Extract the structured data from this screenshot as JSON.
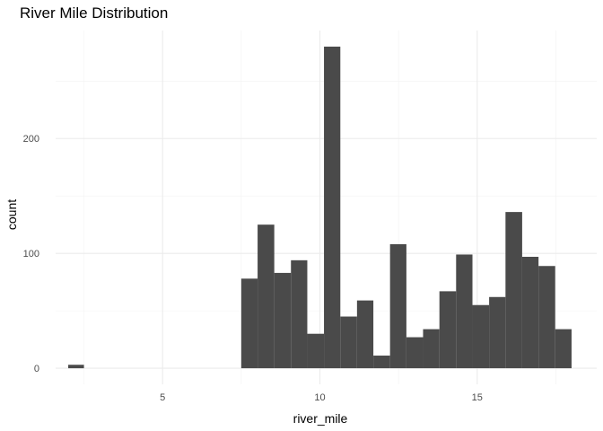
{
  "chart_data": {
    "type": "bar",
    "subtype": "histogram",
    "title": "River Mile Distribution",
    "xlabel": "river_mile",
    "ylabel": "count",
    "xlim": [
      1.6,
      18.8
    ],
    "ylim": [
      -14,
      294
    ],
    "x_ticks": [
      5,
      10,
      15
    ],
    "y_ticks": [
      0,
      100,
      200
    ],
    "x_minor_ticks": [
      2.5,
      7.5,
      12.5,
      17.5
    ],
    "y_minor_ticks": [
      50,
      150,
      250
    ],
    "grid": true,
    "bar_color": "#4a4a4a",
    "bins": [
      {
        "x0": 2.0,
        "x1": 2.5,
        "count": 3
      },
      {
        "x0": 7.5,
        "x1": 8.02,
        "count": 78
      },
      {
        "x0": 8.02,
        "x1": 8.55,
        "count": 125
      },
      {
        "x0": 8.55,
        "x1": 9.08,
        "count": 83
      },
      {
        "x0": 9.08,
        "x1": 9.6,
        "count": 94
      },
      {
        "x0": 9.6,
        "x1": 10.13,
        "count": 30
      },
      {
        "x0": 10.13,
        "x1": 10.65,
        "count": 280
      },
      {
        "x0": 10.65,
        "x1": 11.18,
        "count": 45
      },
      {
        "x0": 11.18,
        "x1": 11.7,
        "count": 59
      },
      {
        "x0": 11.7,
        "x1": 12.23,
        "count": 11
      },
      {
        "x0": 12.23,
        "x1": 12.75,
        "count": 108
      },
      {
        "x0": 12.75,
        "x1": 13.28,
        "count": 27
      },
      {
        "x0": 13.28,
        "x1": 13.8,
        "count": 34
      },
      {
        "x0": 13.8,
        "x1": 14.33,
        "count": 67
      },
      {
        "x0": 14.33,
        "x1": 14.85,
        "count": 99
      },
      {
        "x0": 14.85,
        "x1": 15.38,
        "count": 55
      },
      {
        "x0": 15.38,
        "x1": 15.9,
        "count": 62
      },
      {
        "x0": 15.9,
        "x1": 16.43,
        "count": 136
      },
      {
        "x0": 16.43,
        "x1": 16.95,
        "count": 97
      },
      {
        "x0": 16.95,
        "x1": 17.48,
        "count": 89
      },
      {
        "x0": 17.48,
        "x1": 18.0,
        "count": 34
      }
    ]
  }
}
